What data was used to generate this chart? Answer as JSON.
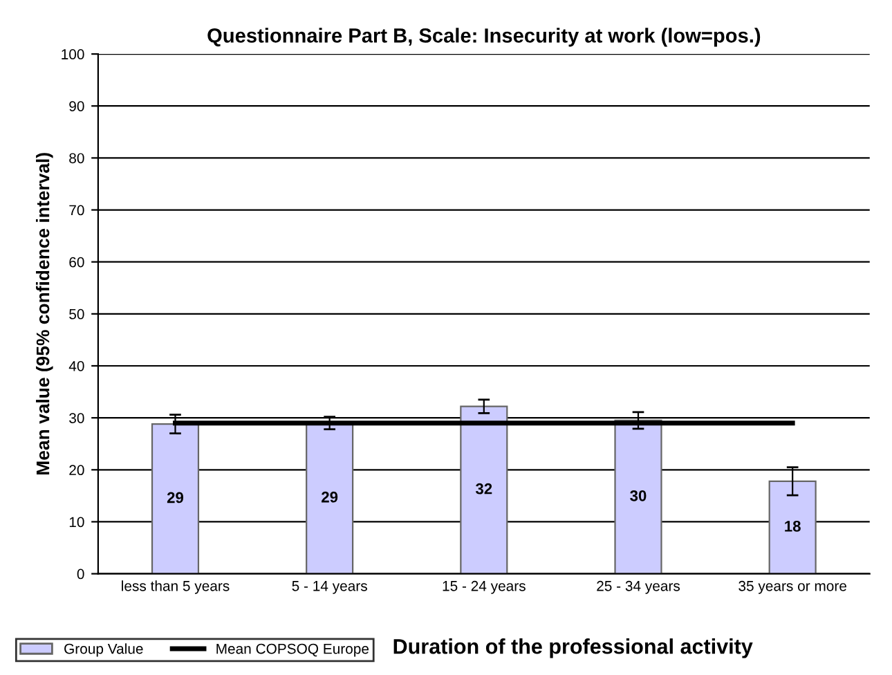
{
  "chart_data": {
    "type": "bar",
    "title": "Questionnaire Part B, Scale: Insecurity at work (low=pos.)",
    "xlabel": "Duration of the professional activity",
    "ylabel": "Mean value (95% confidence interval)",
    "categories": [
      "less than 5 years",
      "5 - 14 years",
      "15 - 24 years",
      "25 - 34 years",
      "35 years or more"
    ],
    "series": [
      {
        "name": "Group Value",
        "color": "#ccccff",
        "values": [
          28.8,
          29.0,
          32.2,
          29.5,
          17.8
        ],
        "errors": [
          1.8,
          1.2,
          1.3,
          1.6,
          2.7
        ],
        "value_labels": [
          "29",
          "29",
          "32",
          "30",
          "18"
        ]
      },
      {
        "name": "Mean COPSOQ Europe",
        "type": "line",
        "color": "#000000",
        "values": [
          29.0,
          29.0,
          29.0,
          29.0,
          29.0
        ]
      }
    ],
    "ylim": [
      0,
      100
    ],
    "yticks": [
      0,
      10,
      20,
      30,
      40,
      50,
      60,
      70,
      80,
      90,
      100
    ],
    "grid": "y",
    "legend": "bottom left",
    "marker": "none",
    "line_style": "solid"
  }
}
